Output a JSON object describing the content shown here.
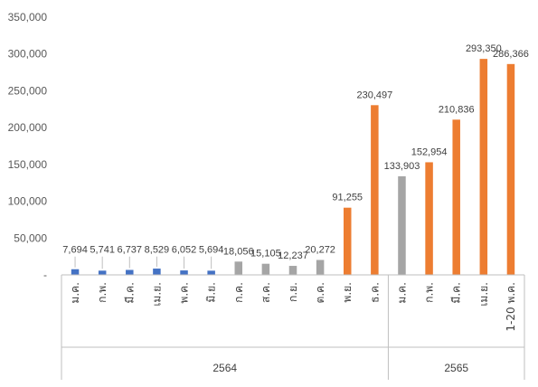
{
  "chart_data": {
    "type": "bar",
    "title": "",
    "xlabel": "",
    "ylabel": "",
    "ylim": [
      0,
      350000
    ],
    "yticks": [
      0,
      50000,
      100000,
      150000,
      200000,
      250000,
      300000,
      350000
    ],
    "ytick_labels": [
      "-",
      "50,000",
      "100,000",
      "150,000",
      "200,000",
      "250,000",
      "300,000",
      "350,000"
    ],
    "grid": false,
    "legend": "none",
    "categories": [
      "ม.ค.",
      "ก.พ.",
      "มี.ค.",
      "เม.ย.",
      "พ.ค.",
      "มิ.ย.",
      "ก.ค.",
      "ส.ค.",
      "ก.ย.",
      "ต.ค.",
      "พ.ย.",
      "ธ.ค.",
      "ม.ค.",
      "ก.พ.",
      "มี.ค.",
      "เม.ย.",
      "1-20 พ.ค."
    ],
    "values": [
      7694,
      5741,
      6737,
      8529,
      6052,
      5694,
      18056,
      15105,
      12237,
      20272,
      91255,
      230497,
      133903,
      152954,
      210836,
      293350,
      286366
    ],
    "value_labels": [
      "7,694",
      "5,741",
      "6,737",
      "8,529",
      "6,052",
      "5,694",
      "18,056",
      "15,105",
      "12,237",
      "20,272",
      "91,255",
      "230,497",
      "133,903",
      "152,954",
      "210,836",
      "293,350",
      "286,366"
    ],
    "bar_colors": [
      "#4472c4",
      "#4472c4",
      "#4472c4",
      "#4472c4",
      "#4472c4",
      "#4472c4",
      "#a5a5a5",
      "#a5a5a5",
      "#a5a5a5",
      "#a5a5a5",
      "#ed7d31",
      "#ed7d31",
      "#a5a5a5",
      "#ed7d31",
      "#ed7d31",
      "#ed7d31",
      "#ed7d31"
    ],
    "groups": [
      {
        "label": "2564",
        "start": 0,
        "end": 11
      },
      {
        "label": "2565",
        "start": 12,
        "end": 16
      }
    ],
    "colors": {
      "blue": "#4472c4",
      "gray": "#a5a5a5",
      "orange": "#ed7d31",
      "axis": "#bfbfbf"
    }
  }
}
